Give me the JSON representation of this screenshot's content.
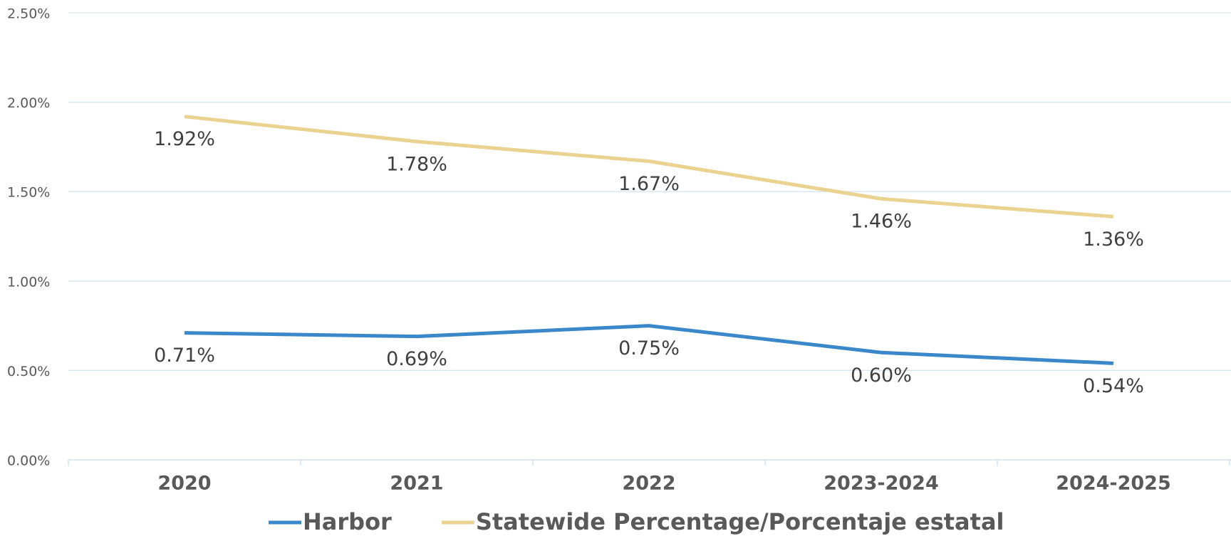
{
  "chart_data": {
    "type": "line",
    "categories": [
      "2020",
      "2021",
      "2022",
      "2023-2024",
      "2024-2025"
    ],
    "series": [
      {
        "name": "Harbor",
        "color": "#3a87c9",
        "values": [
          0.71,
          0.69,
          0.75,
          0.6,
          0.54
        ],
        "value_labels": [
          "0.71%",
          "0.69%",
          "0.75%",
          "0.60%",
          "0.54%"
        ]
      },
      {
        "name": "Statewide Percentage/Porcentaje estatal",
        "color": "#ead391",
        "values": [
          1.92,
          1.78,
          1.67,
          1.46,
          1.36
        ],
        "value_labels": [
          "1.92%",
          "1.78%",
          "1.67%",
          "1.46%",
          "1.36%"
        ]
      }
    ],
    "ylim": [
      0,
      2.5
    ],
    "yticks": [
      {
        "value": 0,
        "label": "0.00%"
      },
      {
        "value": 0.5,
        "label": "0.50%"
      },
      {
        "value": 1,
        "label": "1.00%"
      },
      {
        "value": 1.5,
        "label": "1.50%"
      },
      {
        "value": 2,
        "label": "2.00%"
      },
      {
        "value": 2.5,
        "label": "2.50%"
      }
    ],
    "grid": true
  }
}
